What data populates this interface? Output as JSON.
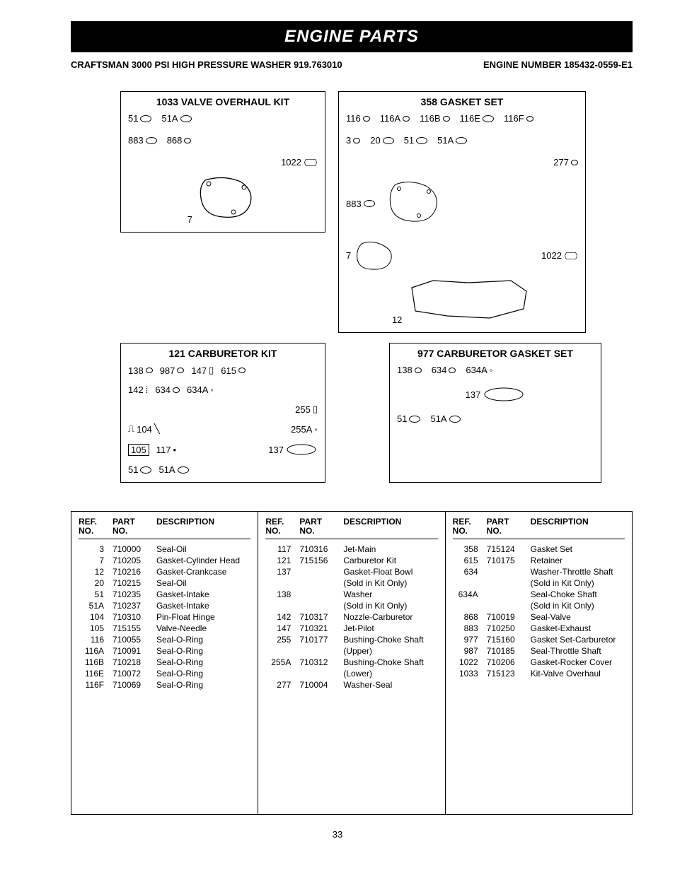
{
  "title_bar": "ENGINE PARTS",
  "subtitle_left": "CRAFTSMAN 3000 PSI HIGH PRESSURE WASHER 919.763010",
  "subtitle_right": "ENGINE NUMBER 185432-0559-E1",
  "page_number": "33",
  "kits": {
    "valve_overhaul": {
      "title": "1033 VALVE OVERHAUL KIT",
      "items": [
        "51",
        "51A",
        "883",
        "868",
        "1022",
        "7"
      ]
    },
    "gasket_set": {
      "title": "358 GASKET SET",
      "items": [
        "116",
        "116A",
        "116B",
        "116E",
        "116F",
        "3",
        "20",
        "51",
        "51A",
        "277",
        "883",
        "7",
        "1022",
        "12"
      ]
    },
    "carburetor_kit": {
      "title": "121 CARBURETOR KIT",
      "items": [
        "138",
        "987",
        "147",
        "615",
        "142",
        "634",
        "634A",
        "255",
        "104",
        "255A",
        "105",
        "117",
        "137",
        "51",
        "51A"
      ]
    },
    "carb_gasket_set": {
      "title": "977 CARBURETOR GASKET SET",
      "items": [
        "138",
        "634",
        "634A",
        "137",
        "51",
        "51A"
      ]
    }
  },
  "table": {
    "headers": {
      "ref": "REF. NO.",
      "part": "PART NO.",
      "desc": "DESCRIPTION"
    },
    "columns": [
      [
        {
          "ref": "3",
          "part": "710000",
          "desc": "Seal-Oil"
        },
        {
          "ref": "7",
          "part": "710205",
          "desc": "Gasket-Cylinder Head"
        },
        {
          "ref": "12",
          "part": "710216",
          "desc": "Gasket-Crankcase"
        },
        {
          "ref": "20",
          "part": "710215",
          "desc": "Seal-Oil"
        },
        {
          "ref": "51",
          "part": "710235",
          "desc": "Gasket-Intake"
        },
        {
          "ref": "51A",
          "part": "710237",
          "desc": "Gasket-Intake"
        },
        {
          "ref": "104",
          "part": "710310",
          "desc": "Pin-Float Hinge"
        },
        {
          "ref": "105",
          "part": "715155",
          "desc": "Valve-Needle"
        },
        {
          "ref": "116",
          "part": "710055",
          "desc": "Seal-O-Ring"
        },
        {
          "ref": "116A",
          "part": "710091",
          "desc": "Seal-O-Ring"
        },
        {
          "ref": "116B",
          "part": "710218",
          "desc": "Seal-O-Ring"
        },
        {
          "ref": "116E",
          "part": "710072",
          "desc": "Seal-O-Ring"
        },
        {
          "ref": "116F",
          "part": "710069",
          "desc": "Seal-O-Ring"
        }
      ],
      [
        {
          "ref": "117",
          "part": "710316",
          "desc": "Jet-Main"
        },
        {
          "ref": "121",
          "part": "715156",
          "desc": "Carburetor Kit"
        },
        {
          "ref": "137",
          "part": "",
          "desc": "Gasket-Float Bowl"
        },
        {
          "ref": "",
          "part": "",
          "desc": "(Sold in Kit Only)"
        },
        {
          "ref": "138",
          "part": "",
          "desc": "Washer"
        },
        {
          "ref": "",
          "part": "",
          "desc": "(Sold in Kit Only)"
        },
        {
          "ref": "142",
          "part": "710317",
          "desc": "Nozzle-Carburetor"
        },
        {
          "ref": "147",
          "part": "710321",
          "desc": "Jet-Pilot"
        },
        {
          "ref": "255",
          "part": "710177",
          "desc": "Bushing-Choke Shaft"
        },
        {
          "ref": "",
          "part": "",
          "desc": "(Upper)"
        },
        {
          "ref": "255A",
          "part": "710312",
          "desc": "Bushing-Choke Shaft"
        },
        {
          "ref": "",
          "part": "",
          "desc": "(Lower)"
        },
        {
          "ref": "277",
          "part": "710004",
          "desc": "Washer-Seal"
        }
      ],
      [
        {
          "ref": "358",
          "part": "715124",
          "desc": "Gasket Set"
        },
        {
          "ref": "615",
          "part": "710175",
          "desc": "Retainer"
        },
        {
          "ref": "634",
          "part": "",
          "desc": "Washer-Throttle Shaft"
        },
        {
          "ref": "",
          "part": "",
          "desc": "(Sold in Kit Only)"
        },
        {
          "ref": "634A",
          "part": "",
          "desc": "Seal-Choke Shaft"
        },
        {
          "ref": "",
          "part": "",
          "desc": "(Sold in Kit Only)"
        },
        {
          "ref": "868",
          "part": "710019",
          "desc": "Seal-Valve"
        },
        {
          "ref": "883",
          "part": "710250",
          "desc": "Gasket-Exhaust"
        },
        {
          "ref": "977",
          "part": "715160",
          "desc": "Gasket Set-Carburetor"
        },
        {
          "ref": "987",
          "part": "710185",
          "desc": "Seal-Throttle Shaft"
        },
        {
          "ref": "1022",
          "part": "710206",
          "desc": "Gasket-Rocker Cover"
        },
        {
          "ref": "1033",
          "part": "715123",
          "desc": "Kit-Valve Overhaul"
        }
      ]
    ]
  }
}
